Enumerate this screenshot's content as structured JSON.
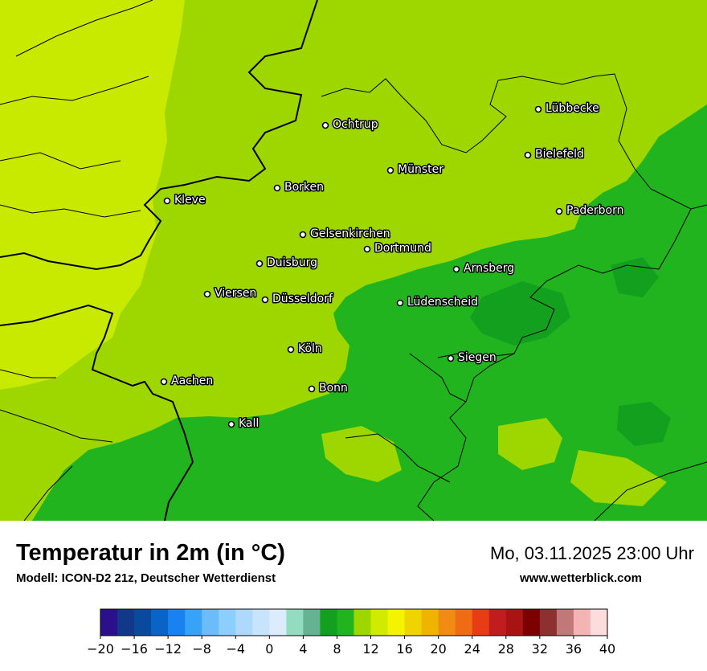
{
  "header": {
    "title": "Temperatur in 2m (in °C)",
    "model": "Modell: ICON-D2 21z, Deutscher Wetterdienst",
    "datetime": "Mo, 03.11.2025 23:00 Uhr",
    "website": "www.wetterblick.com"
  },
  "cities": [
    {
      "name": "Lübbecke"
    },
    {
      "name": "Ochtrup"
    },
    {
      "name": "Bielefeld"
    },
    {
      "name": "Münster"
    },
    {
      "name": "Borken"
    },
    {
      "name": "Kleve"
    },
    {
      "name": "Paderborn"
    },
    {
      "name": "Gelsenkirchen"
    },
    {
      "name": "Dortmund"
    },
    {
      "name": "Duisburg"
    },
    {
      "name": "Arnsberg"
    },
    {
      "name": "Viersen"
    },
    {
      "name": "Düsseldorf"
    },
    {
      "name": "Lüdenscheid"
    },
    {
      "name": "Köln"
    },
    {
      "name": "Siegen"
    },
    {
      "name": "Aachen"
    },
    {
      "name": "Bonn"
    },
    {
      "name": "Kall"
    }
  ],
  "legend": {
    "tick_labels": [
      "−20",
      "−16",
      "−12",
      "−8",
      "−4",
      "0",
      "4",
      "8",
      "12",
      "16",
      "20",
      "24",
      "28",
      "32",
      "36",
      "40"
    ],
    "colors": [
      "#2c0f8a",
      "#12388a",
      "#0a4a9c",
      "#0a64c8",
      "#1a82f0",
      "#36a2f8",
      "#6cbcfa",
      "#8ccefc",
      "#aed9fc",
      "#c6e4fc",
      "#dcecfc",
      "#94dcc0",
      "#64b494",
      "#13a01e",
      "#22b41e",
      "#9ed600",
      "#d0ea00",
      "#f4f400",
      "#f0d400",
      "#f0b400",
      "#f08c14",
      "#f06c14",
      "#e83c14",
      "#c01e1e",
      "#a81414",
      "#7c0000",
      "#8c3030",
      "#c07878",
      "#f4b4b4",
      "#fcdcdc"
    ]
  },
  "temperature_colors": {
    "t8_10": "#22b41e",
    "t10_12": "#9ed600",
    "t12_14": "#c8ea00",
    "t6_8": "#13a01e"
  }
}
